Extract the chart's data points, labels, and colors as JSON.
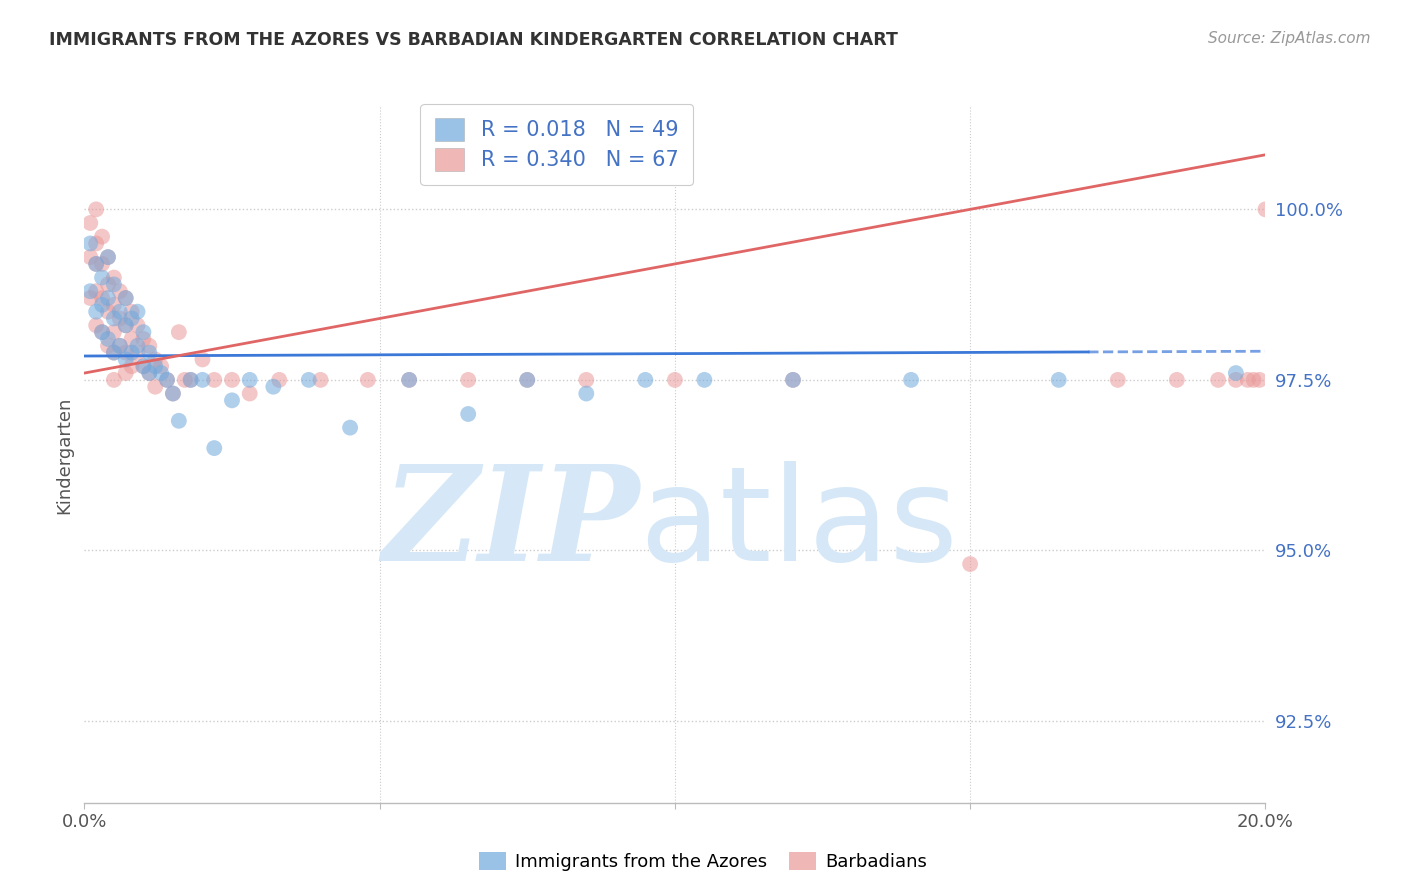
{
  "title": "IMMIGRANTS FROM THE AZORES VS BARBADIAN KINDERGARTEN CORRELATION CHART",
  "source": "Source: ZipAtlas.com",
  "ylabel": "Kindergarten",
  "yticks": [
    92.5,
    95.0,
    97.5,
    100.0
  ],
  "ytick_labels": [
    "92.5%",
    "95.0%",
    "97.5%",
    "100.0%"
  ],
  "xlim": [
    0.0,
    0.2
  ],
  "ylim": [
    91.3,
    101.5
  ],
  "legend1_label": "R = 0.018   N = 49",
  "legend2_label": "R = 0.340   N = 67",
  "legend_xlabel": "Immigrants from the Azores",
  "legend_ylabel": "Barbadians",
  "blue_color": "#6fa8dc",
  "pink_color": "#ea9999",
  "blue_line_color": "#3c78d8",
  "pink_line_color": "#e06666",
  "background_color": "#ffffff",
  "watermark_color": "#d6e8f7",
  "blue_scatter_x": [
    0.001,
    0.001,
    0.002,
    0.002,
    0.003,
    0.003,
    0.003,
    0.004,
    0.004,
    0.004,
    0.005,
    0.005,
    0.005,
    0.006,
    0.006,
    0.007,
    0.007,
    0.007,
    0.008,
    0.008,
    0.009,
    0.009,
    0.01,
    0.01,
    0.011,
    0.011,
    0.012,
    0.013,
    0.014,
    0.015,
    0.016,
    0.018,
    0.02,
    0.022,
    0.025,
    0.028,
    0.032,
    0.038,
    0.045,
    0.055,
    0.065,
    0.075,
    0.085,
    0.095,
    0.105,
    0.12,
    0.14,
    0.165,
    0.195
  ],
  "blue_scatter_y": [
    99.5,
    98.8,
    99.2,
    98.5,
    99.0,
    98.6,
    98.2,
    99.3,
    98.7,
    98.1,
    98.9,
    98.4,
    97.9,
    98.5,
    98.0,
    98.7,
    98.3,
    97.8,
    98.4,
    97.9,
    98.5,
    98.0,
    98.2,
    97.7,
    97.9,
    97.6,
    97.7,
    97.6,
    97.5,
    97.3,
    96.9,
    97.5,
    97.5,
    96.5,
    97.2,
    97.5,
    97.4,
    97.5,
    96.8,
    97.5,
    97.0,
    97.5,
    97.3,
    97.5,
    97.5,
    97.5,
    97.5,
    97.5,
    97.6
  ],
  "pink_scatter_x": [
    0.001,
    0.001,
    0.001,
    0.002,
    0.002,
    0.002,
    0.002,
    0.002,
    0.003,
    0.003,
    0.003,
    0.003,
    0.004,
    0.004,
    0.004,
    0.004,
    0.005,
    0.005,
    0.005,
    0.005,
    0.005,
    0.006,
    0.006,
    0.006,
    0.007,
    0.007,
    0.007,
    0.007,
    0.008,
    0.008,
    0.008,
    0.009,
    0.009,
    0.01,
    0.01,
    0.011,
    0.011,
    0.012,
    0.012,
    0.013,
    0.014,
    0.015,
    0.016,
    0.017,
    0.018,
    0.02,
    0.022,
    0.025,
    0.028,
    0.033,
    0.04,
    0.048,
    0.055,
    0.065,
    0.075,
    0.085,
    0.1,
    0.12,
    0.15,
    0.175,
    0.185,
    0.192,
    0.195,
    0.197,
    0.198,
    0.199,
    0.2
  ],
  "pink_scatter_y": [
    99.8,
    99.3,
    98.7,
    100.0,
    99.5,
    99.2,
    98.8,
    98.3,
    99.6,
    99.2,
    98.7,
    98.2,
    99.3,
    98.9,
    98.5,
    98.0,
    99.0,
    98.6,
    98.2,
    97.9,
    97.5,
    98.8,
    98.4,
    98.0,
    98.7,
    98.3,
    97.9,
    97.6,
    98.5,
    98.1,
    97.7,
    98.3,
    97.9,
    98.1,
    97.7,
    98.0,
    97.6,
    97.8,
    97.4,
    97.7,
    97.5,
    97.3,
    98.2,
    97.5,
    97.5,
    97.8,
    97.5,
    97.5,
    97.3,
    97.5,
    97.5,
    97.5,
    97.5,
    97.5,
    97.5,
    97.5,
    97.5,
    97.5,
    94.8,
    97.5,
    97.5,
    97.5,
    97.5,
    97.5,
    97.5,
    97.5,
    100.0
  ],
  "blue_trendline_x": [
    0.0,
    0.2
  ],
  "blue_trendline_y": [
    97.85,
    97.92
  ],
  "pink_trendline_x": [
    0.0,
    0.2
  ],
  "pink_trendline_y": [
    97.6,
    100.8
  ]
}
